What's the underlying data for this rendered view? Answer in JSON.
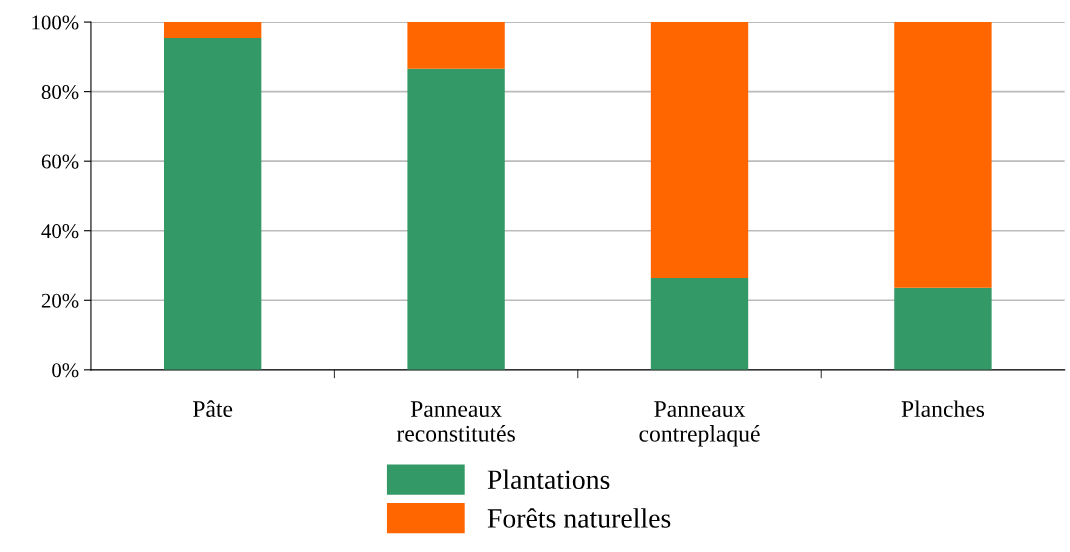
{
  "chart_data": {
    "type": "bar",
    "stacked": true,
    "categories": [
      "Pâte",
      "Panneaux\nreconstitutés",
      "Panneaux\ncontreplaqué",
      "Planches"
    ],
    "series": [
      {
        "name": "Plantations",
        "color": "#339966",
        "values": [
          95.4,
          86.6,
          26.4,
          23.6
        ]
      },
      {
        "name": "Forêts naturelles",
        "color": "#ff6600",
        "values": [
          4.6,
          13.4,
          73.6,
          76.4
        ]
      }
    ],
    "ylim": [
      0,
      100
    ],
    "yticks": [
      {
        "value": 0,
        "label": "0%"
      },
      {
        "value": 20,
        "label": "20%"
      },
      {
        "value": 40,
        "label": "40%"
      },
      {
        "value": 60,
        "label": "60%"
      },
      {
        "value": 80,
        "label": "80%"
      },
      {
        "value": 100,
        "label": "100%"
      }
    ],
    "grid": "y",
    "legend": "bottom"
  }
}
